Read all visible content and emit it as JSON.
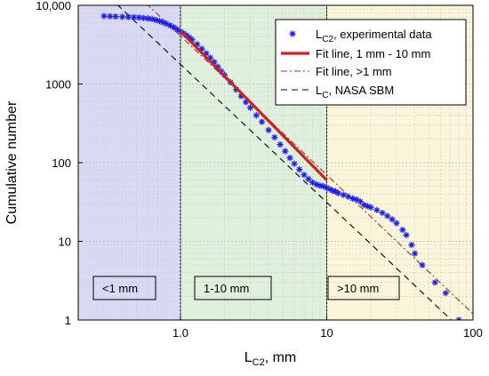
{
  "chart_data": {
    "type": "scatter",
    "xlabel_main": "L",
    "xlabel_sub": "C2",
    "xlabel_unit": ", mm",
    "ylabel": "Cumulative number",
    "x_scale": "log",
    "y_scale": "log",
    "xlim": [
      0.2,
      100
    ],
    "ylim": [
      1,
      10000
    ],
    "grid": true,
    "legend_position": "top-right",
    "x_ticks": [
      {
        "value": 1,
        "label": "1.0"
      },
      {
        "value": 10,
        "label": "10"
      },
      {
        "value": 100,
        "label": "100"
      }
    ],
    "y_ticks": [
      {
        "value": 1,
        "label": "1"
      },
      {
        "value": 10,
        "label": "10"
      },
      {
        "value": 100,
        "label": "100"
      },
      {
        "value": 1000,
        "label": "1000"
      },
      {
        "value": 10000,
        "label": "10,000"
      }
    ],
    "regions": [
      {
        "label": "<1 mm",
        "x_range": [
          0.2,
          1
        ],
        "color": "#d9d9f3"
      },
      {
        "label": "1-10 mm",
        "x_range": [
          1,
          10
        ],
        "color": "#dff1dc"
      },
      {
        "label": ">10 mm",
        "x_range": [
          10,
          100
        ],
        "color": "#fbf6d9"
      }
    ],
    "series": [
      {
        "name_main": "L",
        "name_sub": "C2",
        "name_rest": ", experimental data",
        "kind": "scatter",
        "color": "#1a1aff",
        "x": [
          0.3,
          0.33,
          0.36,
          0.4,
          0.44,
          0.48,
          0.52,
          0.56,
          0.6,
          0.64,
          0.68,
          0.72,
          0.76,
          0.8,
          0.85,
          0.9,
          0.95,
          1.0,
          1.05,
          1.1,
          1.15,
          1.2,
          1.3,
          1.4,
          1.5,
          1.6,
          1.7,
          1.8,
          1.9,
          2.0,
          2.2,
          2.4,
          2.6,
          2.8,
          3.0,
          3.3,
          3.6,
          4.0,
          4.4,
          4.8,
          5.2,
          5.6,
          6.0,
          6.5,
          7.0,
          7.5,
          8.0,
          8.5,
          9.0,
          9.5,
          10,
          10.5,
          11,
          11.5,
          12,
          13,
          14,
          15,
          16,
          17,
          18,
          19,
          20,
          22,
          24,
          26,
          28,
          30,
          33,
          35,
          38,
          40,
          45,
          55,
          65,
          80
        ],
        "y": [
          7300,
          7250,
          7200,
          7150,
          7100,
          7050,
          7000,
          6900,
          6800,
          6700,
          6500,
          6300,
          6100,
          5850,
          5550,
          5250,
          4950,
          4650,
          4400,
          4150,
          3900,
          3650,
          3200,
          2800,
          2450,
          2150,
          1900,
          1650,
          1450,
          1300,
          1050,
          850,
          700,
          590,
          500,
          400,
          330,
          260,
          210,
          170,
          140,
          115,
          97,
          82,
          70,
          62,
          56,
          53,
          51,
          50,
          48,
          46,
          44,
          43,
          41,
          39,
          37,
          35,
          34,
          32,
          29,
          28,
          27,
          25,
          23,
          21,
          19,
          17,
          14,
          12,
          9,
          7,
          5,
          3,
          2.2,
          1
        ]
      },
      {
        "name": "Fit line, 1 mm - 10 mm",
        "kind": "line",
        "color": "#cc2222",
        "style": "solid",
        "x": [
          1,
          10
        ],
        "y": [
          4700,
          60
        ]
      },
      {
        "name": "Fit line, >1 mm",
        "kind": "line",
        "color": "#b03030",
        "style": "dashdot",
        "x": [
          0.2,
          100
        ],
        "y": [
          70000,
          1.2
        ]
      },
      {
        "name_main": "L",
        "name_sub": "C",
        "name_rest": ", NASA SBM",
        "kind": "line",
        "color": "#000000",
        "style": "dashed",
        "x": [
          0.2,
          100
        ],
        "y": [
          30000,
          0.55
        ]
      }
    ]
  }
}
